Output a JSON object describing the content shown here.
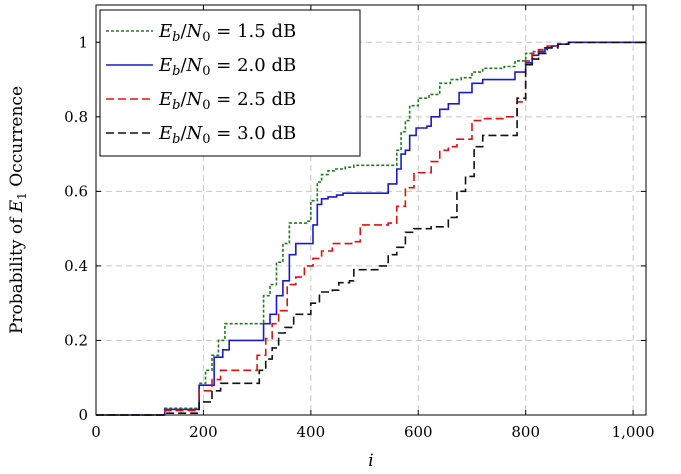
{
  "chart_data": {
    "type": "line",
    "step": true,
    "title": "",
    "xlabel": "i",
    "ylabel": "Probability of E_1 Occurrence",
    "ylabel_parts": {
      "prefix": "Probability of ",
      "var": "E",
      "sub": "1",
      "suffix": " Occurrence"
    },
    "xlim": [
      0,
      1024
    ],
    "ylim": [
      0,
      1.1
    ],
    "xticks": [
      0,
      200,
      400,
      600,
      800,
      1000
    ],
    "xtick_labels": [
      "0",
      "200",
      "400",
      "600",
      "800",
      "1,000"
    ],
    "yticks": [
      0,
      0.2,
      0.4,
      0.6,
      0.8,
      1
    ],
    "ytick_labels": [
      "0",
      "0.2",
      "0.4",
      "0.6",
      "0.8",
      "1"
    ],
    "grid": true,
    "legend_position": "top-left",
    "series": [
      {
        "name": "E_b/N_0 = 1.5 dB",
        "label_value": "1.5",
        "label_unit": "dB",
        "color": "#1f7a1f",
        "dash": "dotted",
        "x": [
          0,
          128,
          192,
          204,
          216,
          228,
          240,
          256,
          300,
          312,
          324,
          336,
          348,
          360,
          372,
          392,
          400,
          412,
          420,
          432,
          444,
          464,
          480,
          520,
          544,
          560,
          568,
          576,
          584,
          600,
          620,
          640,
          660,
          680,
          700,
          720,
          760,
          780,
          800,
          812,
          824,
          832,
          848,
          860,
          880,
          900,
          1024
        ],
        "y": [
          0,
          0.018,
          0.085,
          0.12,
          0.16,
          0.2,
          0.245,
          0.245,
          0.245,
          0.32,
          0.35,
          0.41,
          0.46,
          0.515,
          0.515,
          0.52,
          0.575,
          0.625,
          0.645,
          0.655,
          0.66,
          0.665,
          0.67,
          0.67,
          0.67,
          0.71,
          0.76,
          0.79,
          0.83,
          0.85,
          0.86,
          0.89,
          0.9,
          0.905,
          0.92,
          0.93,
          0.935,
          0.95,
          0.97,
          0.975,
          0.98,
          0.985,
          0.99,
          0.995,
          1.0,
          1.0,
          1.0
        ]
      },
      {
        "name": "E_b/N_0 = 2.0 dB",
        "label_value": "2.0",
        "label_unit": "dB",
        "color": "#1a1acc",
        "dash": "solid",
        "x": [
          0,
          128,
          192,
          220,
          236,
          248,
          312,
          324,
          336,
          348,
          360,
          372,
          392,
          404,
          412,
          420,
          432,
          448,
          460,
          544,
          560,
          568,
          576,
          584,
          596,
          608,
          616,
          624,
          640,
          656,
          676,
          700,
          720,
          760,
          780,
          800,
          812,
          824,
          836,
          848,
          860,
          880,
          900,
          1024
        ],
        "y": [
          0,
          0.015,
          0.08,
          0.155,
          0.175,
          0.2,
          0.245,
          0.27,
          0.32,
          0.36,
          0.43,
          0.46,
          0.46,
          0.51,
          0.565,
          0.58,
          0.585,
          0.59,
          0.595,
          0.62,
          0.66,
          0.7,
          0.71,
          0.75,
          0.77,
          0.77,
          0.775,
          0.8,
          0.82,
          0.835,
          0.865,
          0.89,
          0.9,
          0.9,
          0.92,
          0.945,
          0.965,
          0.975,
          0.985,
          0.99,
          0.995,
          1.0,
          1.0,
          1.0
        ]
      },
      {
        "name": "E_b/N_0 = 2.5 dB",
        "label_value": "2.5",
        "label_unit": "dB",
        "color": "#e01010",
        "dash": "dashed",
        "x": [
          0,
          128,
          192,
          216,
          232,
          248,
          300,
          316,
          328,
          340,
          356,
          372,
          388,
          404,
          420,
          440,
          476,
          492,
          544,
          560,
          576,
          592,
          608,
          624,
          640,
          656,
          672,
          700,
          716,
          760,
          784,
          800,
          812,
          824,
          840,
          860,
          880,
          900,
          1024
        ],
        "y": [
          0,
          0.012,
          0.065,
          0.095,
          0.12,
          0.12,
          0.16,
          0.205,
          0.245,
          0.28,
          0.35,
          0.37,
          0.4,
          0.42,
          0.44,
          0.46,
          0.465,
          0.51,
          0.515,
          0.56,
          0.61,
          0.65,
          0.65,
          0.68,
          0.71,
          0.72,
          0.74,
          0.79,
          0.795,
          0.8,
          0.84,
          0.95,
          0.97,
          0.98,
          0.99,
          0.995,
          1.0,
          1.0,
          1.0
        ]
      },
      {
        "name": "E_b/N_0 = 3.0 dB",
        "label_value": "3.0",
        "label_unit": "dB",
        "color": "#111111",
        "dash": "dashed",
        "x": [
          0,
          128,
          192,
          216,
          232,
          248,
          304,
          316,
          328,
          340,
          352,
          368,
          400,
          416,
          428,
          440,
          452,
          472,
          480,
          528,
          544,
          560,
          576,
          592,
          608,
          624,
          656,
          672,
          688,
          704,
          720,
          760,
          784,
          800,
          812,
          824,
          840,
          860,
          880,
          900,
          1024
        ],
        "y": [
          0,
          0.005,
          0.035,
          0.065,
          0.085,
          0.085,
          0.12,
          0.15,
          0.18,
          0.22,
          0.235,
          0.27,
          0.3,
          0.33,
          0.33,
          0.335,
          0.355,
          0.36,
          0.39,
          0.4,
          0.43,
          0.45,
          0.49,
          0.5,
          0.5,
          0.505,
          0.53,
          0.6,
          0.64,
          0.72,
          0.75,
          0.75,
          0.85,
          0.94,
          0.955,
          0.97,
          0.985,
          0.995,
          1.0,
          1.0,
          1.0
        ]
      }
    ]
  }
}
